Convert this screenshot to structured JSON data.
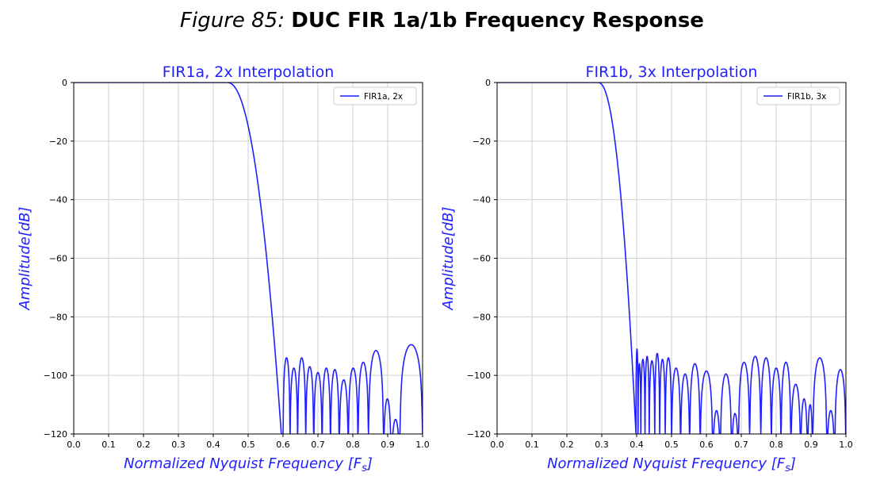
{
  "figure": {
    "caption": "Figure 85:",
    "title": "DUC FIR 1a/1b Frequency Response"
  },
  "colors": {
    "line": "#1f1fff",
    "grid": "#d0d0d0",
    "axis": "#000000"
  },
  "chart_data": [
    {
      "type": "line",
      "title": "FIR1a, 2x Interpolation",
      "xlabel": "Normalized Nyquist Frequency [F",
      "xlabel_sub": "s",
      "xlabel_close": "]",
      "ylabel": "Amplitude[dB]",
      "xlim": [
        0.0,
        1.0
      ],
      "ylim": [
        -120,
        0
      ],
      "xticks": [
        0.0,
        0.1,
        0.2,
        0.3,
        0.4,
        0.5,
        0.6,
        0.7,
        0.8,
        0.9,
        1.0
      ],
      "xtick_labels": [
        "0.0",
        "0.1",
        "0.2",
        "0.3",
        "0.4",
        "0.5",
        "0.6",
        "0.7",
        "0.8",
        "0.9",
        "1.0"
      ],
      "yticks": [
        0,
        -20,
        -40,
        -60,
        -80,
        -100,
        -120
      ],
      "ytick_labels": [
        "0",
        "−20",
        "−40",
        "−60",
        "−80",
        "−100",
        "−120"
      ],
      "grid": true,
      "legend": {
        "position": "top-right",
        "label": "FIR1a, 2x"
      },
      "series": [
        {
          "name": "FIR1a, 2x",
          "passband": {
            "edge": 0.44,
            "stop": 0.595,
            "curve_power": 2.2
          },
          "lobes": [
            {
              "x0": 0.6,
              "x1": 0.62,
              "peak": -94
            },
            {
              "x0": 0.62,
              "x1": 0.642,
              "peak": -97.5
            },
            {
              "x0": 0.642,
              "x1": 0.665,
              "peak": -94
            },
            {
              "x0": 0.665,
              "x1": 0.688,
              "peak": -97
            },
            {
              "x0": 0.688,
              "x1": 0.712,
              "peak": -99
            },
            {
              "x0": 0.712,
              "x1": 0.736,
              "peak": -97.5
            },
            {
              "x0": 0.736,
              "x1": 0.761,
              "peak": -98
            },
            {
              "x0": 0.761,
              "x1": 0.787,
              "peak": -101.5
            },
            {
              "x0": 0.787,
              "x1": 0.815,
              "peak": -97.5
            },
            {
              "x0": 0.815,
              "x1": 0.845,
              "peak": -95.5
            },
            {
              "x0": 0.845,
              "x1": 0.888,
              "peak": -91.5
            },
            {
              "x0": 0.888,
              "x1": 0.91,
              "peak": -108
            },
            {
              "x0": 0.91,
              "x1": 0.935,
              "peak": -115
            },
            {
              "x0": 0.935,
              "x1": 1.0,
              "peak": -89.5
            }
          ]
        }
      ]
    },
    {
      "type": "line",
      "title": "FIR1b, 3x Interpolation",
      "xlabel": "Normalized Nyquist Frequency [F",
      "xlabel_sub": "s",
      "xlabel_close": "]",
      "ylabel": "Amplitude[dB]",
      "xlim": [
        0.0,
        1.0
      ],
      "ylim": [
        -120,
        0
      ],
      "xticks": [
        0.0,
        0.1,
        0.2,
        0.3,
        0.4,
        0.5,
        0.6,
        0.7,
        0.8,
        0.9,
        1.0
      ],
      "xtick_labels": [
        "0.0",
        "0.1",
        "0.2",
        "0.3",
        "0.4",
        "0.5",
        "0.6",
        "0.7",
        "0.8",
        "0.9",
        "1.0"
      ],
      "yticks": [
        0,
        -20,
        -40,
        -60,
        -80,
        -100,
        -120
      ],
      "ytick_labels": [
        "0",
        "−20",
        "−40",
        "−60",
        "−80",
        "−100",
        "−120"
      ],
      "grid": true,
      "legend": {
        "position": "top-right",
        "label": "FIR1b, 3x"
      },
      "series": [
        {
          "name": "FIR1b, 3x",
          "passband": {
            "edge": 0.29,
            "stop": 0.398,
            "curve_power": 2.2
          },
          "lobes": [
            {
              "x0": 0.398,
              "x1": 0.404,
              "peak": -91
            },
            {
              "x0": 0.404,
              "x1": 0.412,
              "peak": -96
            },
            {
              "x0": 0.412,
              "x1": 0.424,
              "peak": -94.5
            },
            {
              "x0": 0.424,
              "x1": 0.436,
              "peak": -93.5
            },
            {
              "x0": 0.436,
              "x1": 0.452,
              "peak": -95
            },
            {
              "x0": 0.452,
              "x1": 0.466,
              "peak": -92.5
            },
            {
              "x0": 0.466,
              "x1": 0.482,
              "peak": -94.5
            },
            {
              "x0": 0.482,
              "x1": 0.5,
              "peak": -94
            },
            {
              "x0": 0.5,
              "x1": 0.526,
              "peak": -97.5
            },
            {
              "x0": 0.526,
              "x1": 0.552,
              "peak": -99.5
            },
            {
              "x0": 0.552,
              "x1": 0.582,
              "peak": -96
            },
            {
              "x0": 0.582,
              "x1": 0.618,
              "peak": -98.5
            },
            {
              "x0": 0.618,
              "x1": 0.64,
              "peak": -112
            },
            {
              "x0": 0.64,
              "x1": 0.672,
              "peak": -99.5
            },
            {
              "x0": 0.672,
              "x1": 0.692,
              "peak": -113
            },
            {
              "x0": 0.692,
              "x1": 0.724,
              "peak": -95.5
            },
            {
              "x0": 0.724,
              "x1": 0.756,
              "peak": -93.5
            },
            {
              "x0": 0.756,
              "x1": 0.786,
              "peak": -94
            },
            {
              "x0": 0.786,
              "x1": 0.814,
              "peak": -97.5
            },
            {
              "x0": 0.814,
              "x1": 0.842,
              "peak": -95.5
            },
            {
              "x0": 0.842,
              "x1": 0.87,
              "peak": -103
            },
            {
              "x0": 0.87,
              "x1": 0.89,
              "peak": -108
            },
            {
              "x0": 0.89,
              "x1": 0.905,
              "peak": -110
            },
            {
              "x0": 0.905,
              "x1": 0.945,
              "peak": -94
            },
            {
              "x0": 0.945,
              "x1": 0.968,
              "peak": -112
            },
            {
              "x0": 0.968,
              "x1": 1.0,
              "peak": -98
            }
          ]
        }
      ]
    }
  ]
}
